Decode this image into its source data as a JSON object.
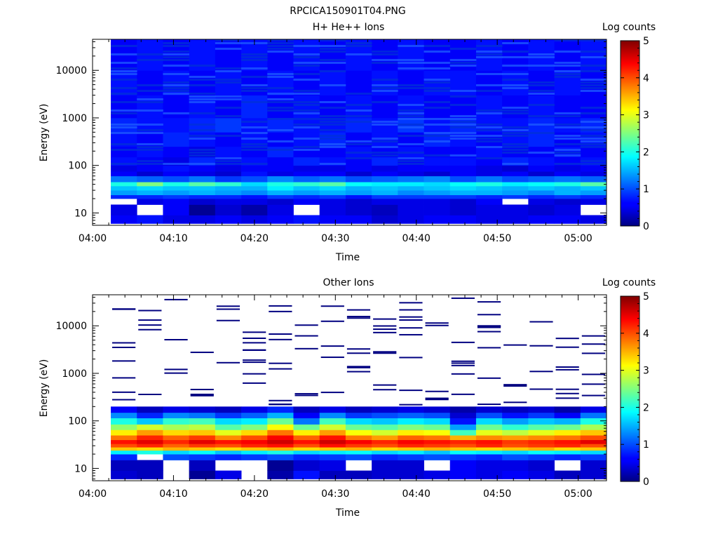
{
  "figure_title": "RPCICA150901T04.PNG",
  "chart_data": [
    {
      "type": "heatmap",
      "title": "H+ He++ Ions",
      "xlabel": "Time",
      "ylabel": "Energy (eV)",
      "y_scale": "log",
      "ylim": [
        5.5,
        45000
      ],
      "x_ticks": [
        "04:00",
        "04:10",
        "04:20",
        "04:30",
        "04:40",
        "04:50",
        "05:00"
      ],
      "y_ticks": [
        "10",
        "100",
        "1000",
        "10000"
      ],
      "colorbar": {
        "label": "Log counts",
        "min": 0,
        "max": 5,
        "ticks": [
          "0",
          "1",
          "2",
          "3",
          "4",
          "5"
        ],
        "colormap": "jet"
      },
      "time_bins": [
        "04:02",
        "04:05",
        "04:08",
        "04:12",
        "04:15",
        "04:18",
        "04:21",
        "04:24",
        "04:28",
        "04:31",
        "04:34",
        "04:37",
        "04:41",
        "04:44",
        "04:47",
        "04:50",
        "04:53",
        "04:57",
        "05:00"
      ],
      "energy_bin_edges": [
        6,
        9,
        15,
        20,
        24,
        30,
        37,
        45,
        60,
        75,
        100,
        150,
        250,
        500,
        1000,
        3000,
        10000,
        45000
      ],
      "log_counts": [
        [
          0.6,
          0.7,
          0.5,
          0.5,
          0.6,
          0.5,
          0.6,
          0.7,
          0.6,
          0.6,
          0.4,
          0.5,
          0.6,
          0.6,
          0.5,
          0.5,
          0.6,
          0.6,
          0.5
        ],
        [
          0.5,
          null,
          0.6,
          0.1,
          0.4,
          0.2,
          0.5,
          null,
          0.5,
          0.4,
          0.3,
          0.5,
          0.5,
          0.4,
          0.5,
          0.5,
          0.4,
          0.5,
          null
        ],
        [
          null,
          0.5,
          0.6,
          0.4,
          0.5,
          0.5,
          0.4,
          0.6,
          0.5,
          0.4,
          0.5,
          0.5,
          0.5,
          0.4,
          0.6,
          null,
          0.5,
          0.4,
          0.5
        ],
        [
          0.8,
          0.8,
          0.9,
          0.8,
          0.8,
          0.7,
          0.9,
          0.8,
          0.9,
          0.7,
          0.9,
          0.9,
          0.9,
          0.9,
          0.8,
          0.9,
          0.8,
          0.9,
          0.8
        ],
        [
          1.4,
          1.5,
          1.4,
          1.5,
          1.4,
          1.3,
          1.5,
          1.4,
          1.5,
          1.4,
          1.5,
          1.3,
          1.4,
          1.5,
          1.5,
          1.4,
          1.3,
          1.5,
          1.4
        ],
        [
          1.6,
          1.7,
          1.6,
          1.6,
          1.5,
          1.5,
          1.8,
          1.6,
          1.7,
          1.5,
          1.6,
          1.5,
          1.6,
          1.7,
          1.6,
          1.5,
          1.6,
          1.5,
          1.6
        ],
        [
          2.0,
          2.5,
          2.0,
          2.3,
          2.1,
          1.7,
          2.0,
          2.1,
          2.3,
          1.9,
          1.8,
          1.8,
          1.7,
          1.9,
          2.0,
          1.8,
          1.9,
          2.0,
          2.3
        ],
        [
          1.2,
          1.1,
          1.0,
          1.2,
          0.9,
          1.0,
          1.3,
          1.1,
          1.2,
          1.0,
          1.1,
          1.2,
          1.3,
          1.0,
          1.2,
          1.0,
          1.1,
          1.2,
          1.1
        ],
        [
          0.6,
          0.4,
          0.6,
          0.5,
          0.4,
          0.7,
          0.5,
          0.6,
          0.6,
          0.4,
          0.6,
          0.5,
          0.4,
          0.6,
          0.5,
          0.6,
          0.4,
          0.6,
          0.5
        ],
        [
          0.5,
          0.6,
          0.7,
          0.6,
          0.5,
          0.6,
          0.6,
          0.5,
          0.5,
          0.6,
          0.5,
          0.6,
          0.6,
          0.6,
          0.5,
          0.4,
          0.6,
          0.5,
          0.6
        ],
        [
          0.7,
          0.6,
          0.5,
          0.8,
          0.6,
          0.7,
          0.6,
          0.8,
          0.7,
          0.6,
          0.8,
          0.6,
          0.7,
          0.7,
          0.6,
          0.8,
          0.7,
          0.6,
          0.7
        ],
        [
          0.6,
          0.7,
          0.6,
          0.5,
          0.7,
          0.6,
          0.8,
          0.6,
          0.6,
          0.7,
          0.6,
          0.7,
          0.6,
          0.6,
          0.7,
          0.6,
          0.6,
          0.7,
          0.6
        ],
        [
          0.7,
          0.6,
          0.8,
          0.7,
          0.6,
          0.7,
          0.6,
          0.7,
          0.8,
          0.6,
          0.7,
          0.6,
          0.8,
          0.7,
          0.6,
          0.7,
          0.8,
          0.6,
          0.7
        ],
        [
          0.8,
          0.7,
          0.7,
          0.8,
          0.9,
          0.7,
          0.8,
          0.7,
          0.7,
          0.8,
          0.7,
          0.9,
          0.7,
          0.8,
          0.7,
          0.7,
          0.8,
          0.7,
          0.8
        ],
        [
          0.6,
          0.7,
          0.6,
          0.7,
          0.6,
          0.8,
          0.6,
          0.7,
          0.6,
          0.7,
          0.6,
          0.7,
          0.6,
          0.6,
          0.7,
          0.6,
          0.7,
          0.6,
          0.6
        ],
        [
          0.7,
          0.6,
          0.7,
          0.6,
          0.7,
          0.6,
          0.7,
          0.6,
          0.7,
          0.6,
          0.7,
          0.6,
          0.7,
          0.7,
          0.6,
          0.7,
          0.6,
          0.7,
          0.6
        ],
        [
          0.6,
          0.7,
          0.6,
          0.7,
          0.6,
          0.7,
          0.6,
          0.7,
          0.6,
          0.7,
          0.6,
          0.7,
          0.6,
          0.6,
          0.7,
          0.6,
          0.7,
          0.6,
          0.7
        ]
      ]
    },
    {
      "type": "heatmap",
      "title": "Other Ions",
      "xlabel": "Time",
      "ylabel": "Energy (eV)",
      "y_scale": "log",
      "ylim": [
        5.5,
        45000
      ],
      "x_ticks": [
        "04:00",
        "04:10",
        "04:20",
        "04:30",
        "04:40",
        "04:50",
        "05:00"
      ],
      "y_ticks": [
        "10",
        "100",
        "1000",
        "10000"
      ],
      "colorbar": {
        "label": "Log counts",
        "min": 0,
        "max": 5,
        "ticks": [
          "0",
          "1",
          "2",
          "3",
          "4",
          "5"
        ],
        "colormap": "jet"
      },
      "time_bins": [
        "04:02",
        "04:05",
        "04:08",
        "04:12",
        "04:15",
        "04:18",
        "04:21",
        "04:24",
        "04:28",
        "04:31",
        "04:34",
        "04:37",
        "04:41",
        "04:44",
        "04:47",
        "04:50",
        "04:53",
        "04:57",
        "05:00"
      ],
      "energy_bin_edges": [
        6,
        9,
        15,
        20,
        24,
        28,
        33,
        40,
        50,
        65,
        85,
        115,
        150,
        200
      ],
      "log_counts": [
        [
          0.4,
          0.3,
          null,
          0.1,
          0.5,
          null,
          0.2,
          0.7,
          0.3,
          0.3,
          0.4,
          0.4,
          0.5,
          0.6,
          0.5,
          0.6,
          0.5,
          0.3,
          0.4
        ],
        [
          0.3,
          0.3,
          null,
          0.3,
          null,
          null,
          0.1,
          0.4,
          0.5,
          null,
          0.4,
          0.4,
          null,
          0.6,
          0.5,
          0.5,
          0.4,
          null,
          0.4
        ],
        [
          0.8,
          null,
          1.0,
          0.9,
          0.8,
          0.9,
          1.0,
          0.8,
          0.9,
          1.0,
          0.8,
          0.9,
          1.0,
          0.9,
          0.8,
          1.0,
          0.9,
          0.8,
          0.9
        ],
        [
          1.8,
          2.0,
          1.7,
          1.9,
          1.6,
          1.8,
          2.0,
          1.7,
          1.8,
          1.9,
          1.7,
          1.8,
          1.6,
          1.9,
          1.8,
          1.7,
          1.9,
          1.8,
          1.7
        ],
        [
          3.4,
          3.3,
          3.5,
          3.4,
          3.3,
          3.4,
          3.5,
          3.3,
          3.4,
          3.5,
          3.3,
          3.4,
          3.5,
          3.4,
          3.3,
          3.4,
          3.5,
          3.3,
          3.4
        ],
        [
          4.0,
          4.2,
          3.9,
          4.1,
          4.0,
          4.2,
          4.3,
          4.0,
          4.3,
          4.1,
          4.0,
          4.2,
          4.1,
          4.0,
          4.2,
          4.0,
          4.1,
          4.2,
          4.0
        ],
        [
          4.3,
          4.5,
          4.2,
          4.5,
          4.3,
          4.4,
          4.6,
          4.3,
          4.6,
          4.4,
          4.2,
          4.4,
          4.3,
          4.2,
          4.3,
          4.1,
          4.2,
          4.3,
          4.5
        ],
        [
          3.8,
          4.2,
          3.9,
          4.1,
          3.7,
          4.0,
          4.4,
          3.9,
          4.3,
          3.8,
          3.6,
          3.9,
          3.8,
          3.5,
          3.7,
          3.6,
          3.7,
          3.8,
          4.0
        ],
        [
          3.2,
          3.6,
          3.3,
          3.4,
          3.0,
          3.3,
          3.8,
          3.2,
          3.6,
          3.1,
          2.9,
          3.2,
          3.1,
          2.2,
          3.0,
          2.8,
          3.0,
          3.2,
          3.4
        ],
        [
          2.6,
          2.9,
          2.7,
          2.8,
          2.3,
          2.5,
          3.1,
          2.4,
          2.9,
          2.4,
          2.3,
          2.5,
          2.4,
          1.4,
          2.4,
          2.1,
          2.3,
          2.4,
          2.7
        ],
        [
          2.0,
          1.6,
          2.1,
          2.2,
          1.7,
          1.8,
          2.4,
          1.2,
          2.2,
          1.7,
          1.6,
          1.8,
          1.7,
          0.7,
          1.7,
          1.4,
          1.6,
          1.5,
          2.0
        ],
        [
          1.3,
          0.8,
          1.3,
          1.2,
          0.9,
          1.1,
          1.5,
          0.6,
          1.3,
          0.9,
          1.0,
          1.1,
          1.0,
          0.4,
          1.0,
          0.7,
          0.9,
          0.6,
          1.2
        ],
        [
          0.6,
          0.3,
          0.5,
          0.4,
          0.3,
          0.5,
          0.8,
          0.3,
          0.5,
          0.3,
          0.4,
          0.5,
          0.4,
          0.2,
          0.4,
          0.3,
          0.4,
          0.2,
          0.5
        ]
      ]
    }
  ]
}
